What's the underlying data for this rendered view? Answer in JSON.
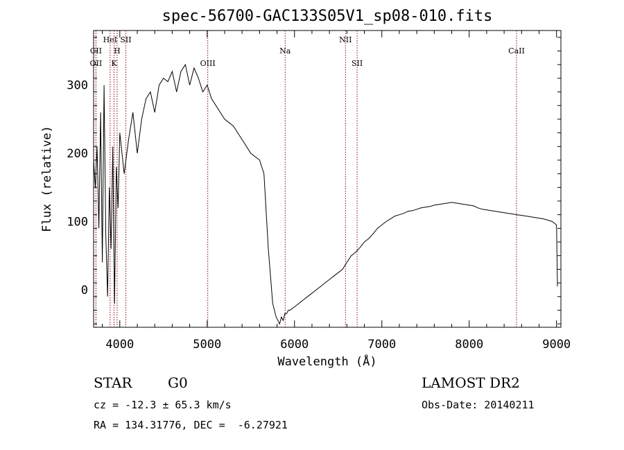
{
  "chart_data": {
    "type": "line",
    "title": "spec-56700-GAC133S05V1_sp08-010.fits",
    "xlabel": "Wavelength (Å)",
    "ylabel": "Flux (relative)",
    "xlim": [
      3700,
      9050
    ],
    "ylim": [
      -55,
      380
    ],
    "xticks": [
      4000,
      5000,
      6000,
      7000,
      8000,
      9000
    ],
    "yticks": [
      0,
      100,
      200,
      300
    ],
    "grid": false,
    "series": [
      {
        "x": [
          3700,
          3720,
          3740,
          3760,
          3780,
          3800,
          3820,
          3840,
          3860,
          3880,
          3900,
          3920,
          3940,
          3960,
          3980,
          4000,
          4050,
          4100,
          4150,
          4200,
          4250,
          4300,
          4350,
          4400,
          4450,
          4500,
          4550,
          4600,
          4650,
          4700,
          4750,
          4800,
          4850,
          4900,
          4950,
          5000,
          5050,
          5100,
          5150,
          5200,
          5250,
          5300,
          5350,
          5400,
          5450,
          5500,
          5550,
          5600,
          5650,
          5700,
          5750,
          5770,
          5790,
          5810,
          5830,
          5850,
          5870,
          5890,
          5910,
          5930,
          5950,
          5970,
          6000,
          6050,
          6100,
          6150,
          6200,
          6250,
          6300,
          6350,
          6400,
          6450,
          6500,
          6550,
          6600,
          6650,
          6700,
          6750,
          6800,
          6850,
          6900,
          6950,
          7000,
          7050,
          7100,
          7150,
          7200,
          7250,
          7300,
          7350,
          7400,
          7450,
          7500,
          7550,
          7600,
          7650,
          7700,
          7750,
          7800,
          7850,
          7900,
          7950,
          8000,
          8050,
          8100,
          8150,
          8200,
          8250,
          8300,
          8350,
          8400,
          8450,
          8500,
          8550,
          8600,
          8650,
          8700,
          8750,
          8800,
          8850,
          8900,
          8950,
          9000,
          9010
        ],
        "y": [
          190,
          150,
          210,
          90,
          260,
          40,
          300,
          80,
          -10,
          150,
          60,
          210,
          -20,
          180,
          120,
          230,
          170,
          220,
          260,
          200,
          250,
          280,
          290,
          260,
          300,
          310,
          305,
          320,
          290,
          320,
          330,
          300,
          325,
          310,
          290,
          300,
          280,
          270,
          260,
          250,
          245,
          240,
          230,
          220,
          210,
          200,
          195,
          190,
          170,
          60,
          -20,
          -30,
          -40,
          -45,
          -50,
          -40,
          -45,
          -35,
          -35,
          -30,
          -30,
          -28,
          -25,
          -20,
          -15,
          -10,
          -5,
          0,
          5,
          10,
          15,
          20,
          25,
          30,
          40,
          50,
          55,
          62,
          70,
          75,
          82,
          90,
          95,
          100,
          104,
          108,
          110,
          112,
          115,
          116,
          118,
          120,
          121,
          122,
          124,
          125,
          126,
          127,
          128,
          127,
          126,
          125,
          124,
          123,
          120,
          118,
          117,
          116,
          115,
          114,
          113,
          112,
          111,
          110,
          109,
          108,
          107,
          106,
          105,
          104,
          102,
          100,
          95,
          5
        ]
      }
    ],
    "line_markers": [
      {
        "label": "CII",
        "row": 3,
        "wavelength": 3727
      },
      {
        "label": "OII",
        "row": 4,
        "wavelength": 3727
      },
      {
        "label": "HeI",
        "row": 1,
        "wavelength": 3889
      },
      {
        "label": "H",
        "row": 3,
        "wavelength": 3969
      },
      {
        "label": "K",
        "row": 4,
        "wavelength": 3934
      },
      {
        "label": "SII",
        "row": 1,
        "wavelength": 4069
      },
      {
        "label": "OIII",
        "row": 4,
        "wavelength": 5007
      },
      {
        "label": "Na",
        "row": 3,
        "wavelength": 5893
      },
      {
        "label": "NII",
        "row": 1,
        "wavelength": 6584
      },
      {
        "label": "SII",
        "row": 4,
        "wavelength": 6717
      },
      {
        "label": "CaII",
        "row": 3,
        "wavelength": 8542
      }
    ]
  },
  "info": {
    "object_type": "STAR",
    "subclass": "G0",
    "survey": "LAMOST DR2",
    "redshift_line": "cz = -12.3 ± 65.3 km/s",
    "obs_date_line": "Obs-Date: 20140211",
    "coords_line": "RA = 134.31776, DEC =  -6.27921"
  },
  "colors": {
    "spectrum": "#000000",
    "marker_lines": "#8b0000",
    "background": "#ffffff"
  }
}
